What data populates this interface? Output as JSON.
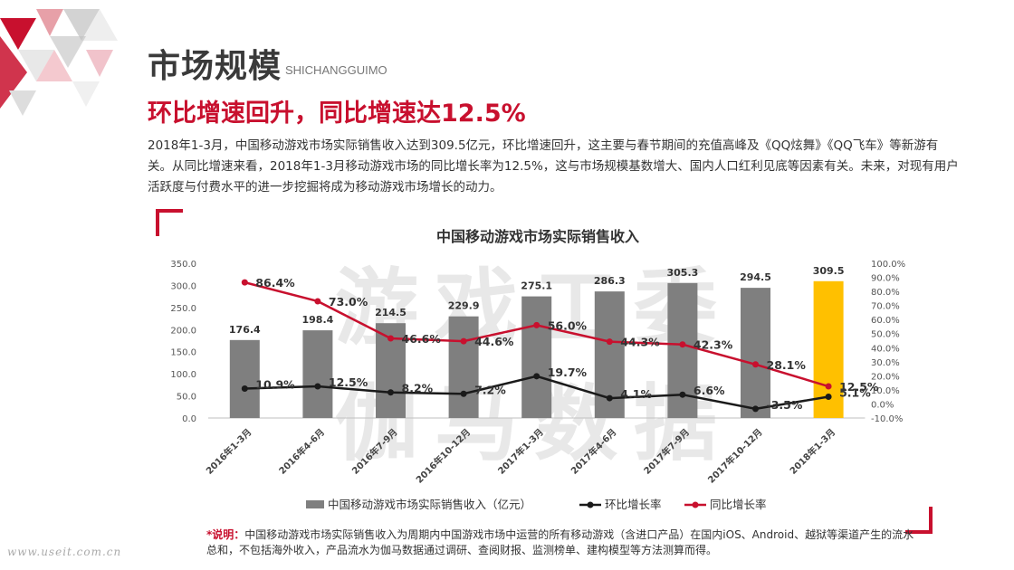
{
  "page": {
    "title": "市场规模",
    "title_en": "SHICHANGGUIMO",
    "subtitle": "环比增速回升，同比增速达12.5%",
    "description": "2018年1-3月，中国移动游戏市场实际销售收入达到309.5亿元，环比增速回升，这主要与春节期间的充值高峰及《QQ炫舞》《QQ飞车》等新游有关。从同比增速来看，2018年1-3月移动游戏市场的同比增长率为12.5%，这与市场规模基数增大、国内人口红利见底等因素有关。未来，对现有用户活跃度与付费水平的进一步挖掘将成为移动游戏市场增长的动力。",
    "note_label": "*说明：",
    "note_text": "中国移动游戏市场实际销售收入为周期内中国游戏市场中运营的所有移动游戏（含进口产品）在国内iOS、Android、越狱等渠道产生的流水总和，不包括海外收入，产品流水为伽马数据通过调研、查阅财报、监测榜单、建构模型等方法测算而得。",
    "site": "www.useit.com.cn",
    "watermark_top": "游戏工委",
    "watermark_bottom": "伽马数据"
  },
  "colors": {
    "accent": "#c8102e",
    "bar": "#7f7f7f",
    "bar_highlight": "#ffc000",
    "qoq_line": "#1a1a1a",
    "yoy_line": "#c8102e",
    "watermark": "#e6e6e6"
  },
  "chart_data": {
    "type": "bar",
    "title": "中国移动游戏市场实际销售收入",
    "categories": [
      "2016年1-3月",
      "2016年4-6月",
      "2016年7-9月",
      "2016年10-12月",
      "2017年1-3月",
      "2017年4-6月",
      "2017年7-9月",
      "2017年10-12月",
      "2018年1-3月"
    ],
    "series": [
      {
        "name": "中国移动游戏市场实际销售收入（亿元）",
        "type": "bar",
        "axis": "left",
        "values": [
          176.4,
          198.4,
          214.5,
          229.9,
          275.1,
          286.3,
          305.3,
          294.5,
          309.5
        ],
        "labels": [
          "176.4",
          "198.4",
          "214.5",
          "229.9",
          "275.1",
          "286.3",
          "305.3",
          "294.5",
          "309.5"
        ]
      },
      {
        "name": "环比增长率",
        "type": "line",
        "axis": "right",
        "values": [
          10.9,
          12.5,
          8.2,
          7.2,
          19.7,
          4.1,
          6.6,
          -3.5,
          5.1
        ],
        "labels": [
          "10.9%",
          "12.5%",
          "8.2%",
          "7.2%",
          "19.7%",
          "4.1%",
          "6.6%",
          "-3.5%",
          "5.1%"
        ]
      },
      {
        "name": "同比增长率",
        "type": "line",
        "axis": "right",
        "values": [
          86.4,
          73.0,
          46.6,
          44.6,
          56.0,
          44.3,
          42.3,
          28.1,
          12.5
        ],
        "labels": [
          "86.4%",
          "73.0%",
          "46.6%",
          "44.6%",
          "56.0%",
          "44.3%",
          "42.3%",
          "28.1%",
          "12.5%"
        ]
      }
    ],
    "left_axis": {
      "min": 0,
      "max": 350,
      "step": 50,
      "ticks": [
        "0.0",
        "50.0",
        "100.0",
        "150.0",
        "200.0",
        "250.0",
        "300.0",
        "350.0"
      ]
    },
    "right_axis": {
      "min": -10,
      "max": 100,
      "step": 10,
      "ticks": [
        "-10.0%",
        "0.0%",
        "10.0%",
        "20.0%",
        "30.0%",
        "40.0%",
        "50.0%",
        "60.0%",
        "70.0%",
        "80.0%",
        "90.0%",
        "100.0%"
      ]
    },
    "highlight_index": 8,
    "legend_position": "bottom",
    "grid": false
  }
}
